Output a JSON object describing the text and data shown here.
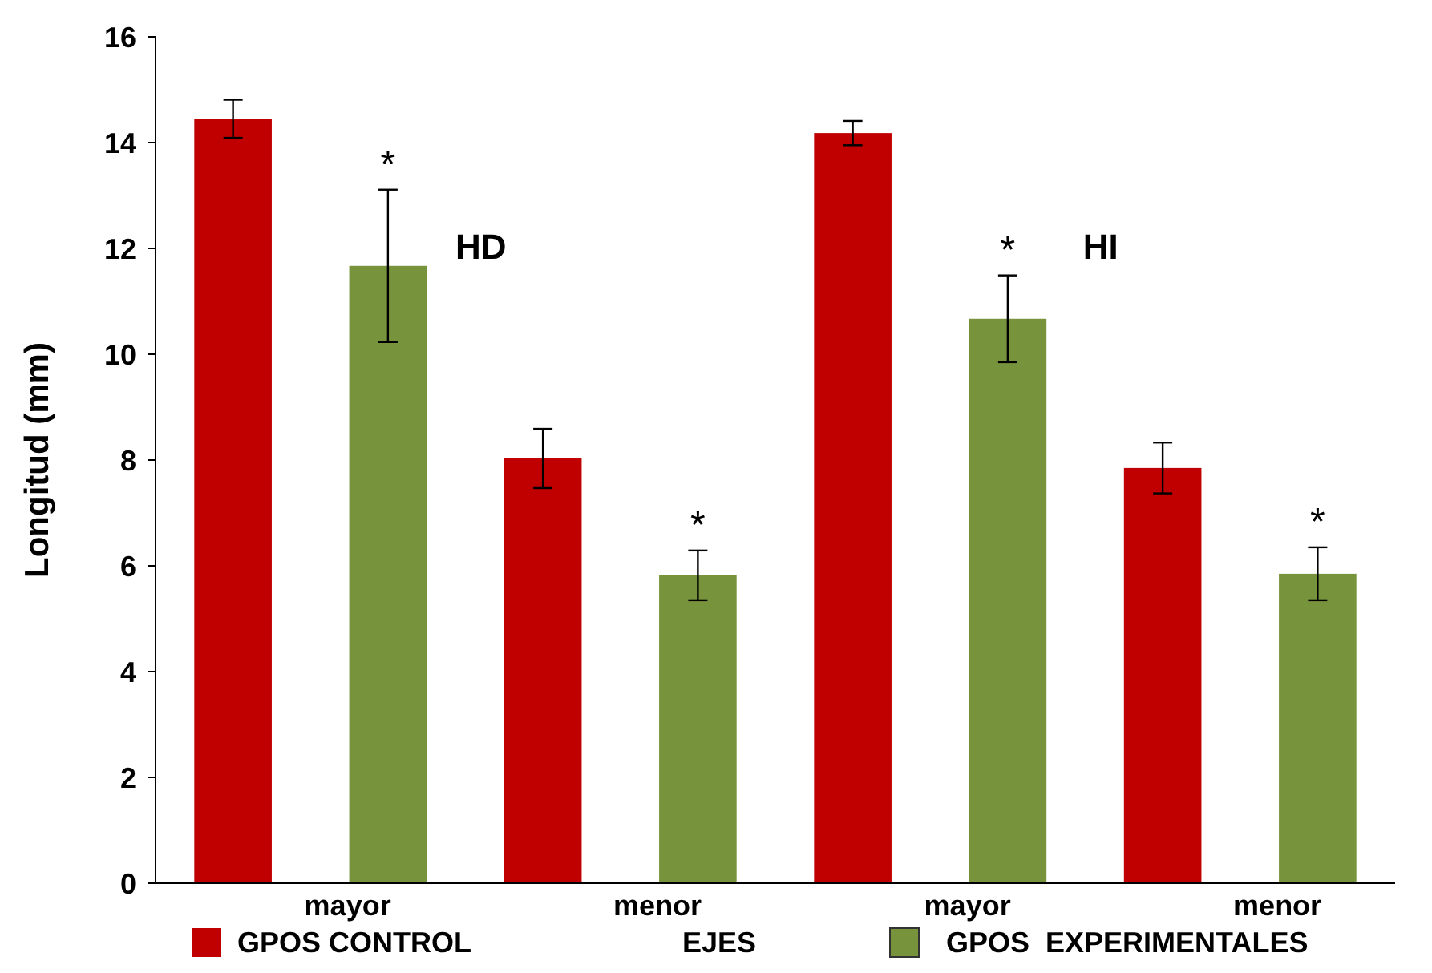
{
  "chart_data": {
    "type": "bar",
    "xlabel": "EJES",
    "ylabel": "Longitud (mm)",
    "categories": [
      "mayor",
      "menor",
      "mayor",
      "menor"
    ],
    "series": [
      {
        "name": "GPOS CONTROL",
        "color": "#c00000",
        "values": [
          14.45,
          8.03,
          14.18,
          7.85
        ],
        "errors": [
          0.36,
          0.56,
          0.23,
          0.48
        ]
      },
      {
        "name": "GPOS  EXPERIMENTALES",
        "color": "#77933c",
        "values": [
          11.67,
          5.82,
          10.67,
          5.85
        ],
        "errors": [
          1.44,
          0.47,
          0.82,
          0.5
        ]
      }
    ],
    "ylim": [
      0,
      16
    ],
    "yticks": [
      0,
      2,
      4,
      6,
      8,
      10,
      12,
      14,
      16
    ],
    "legend": "bottom",
    "annotations": [
      "HD",
      "HI",
      "*",
      "*",
      "*",
      "*"
    ]
  }
}
